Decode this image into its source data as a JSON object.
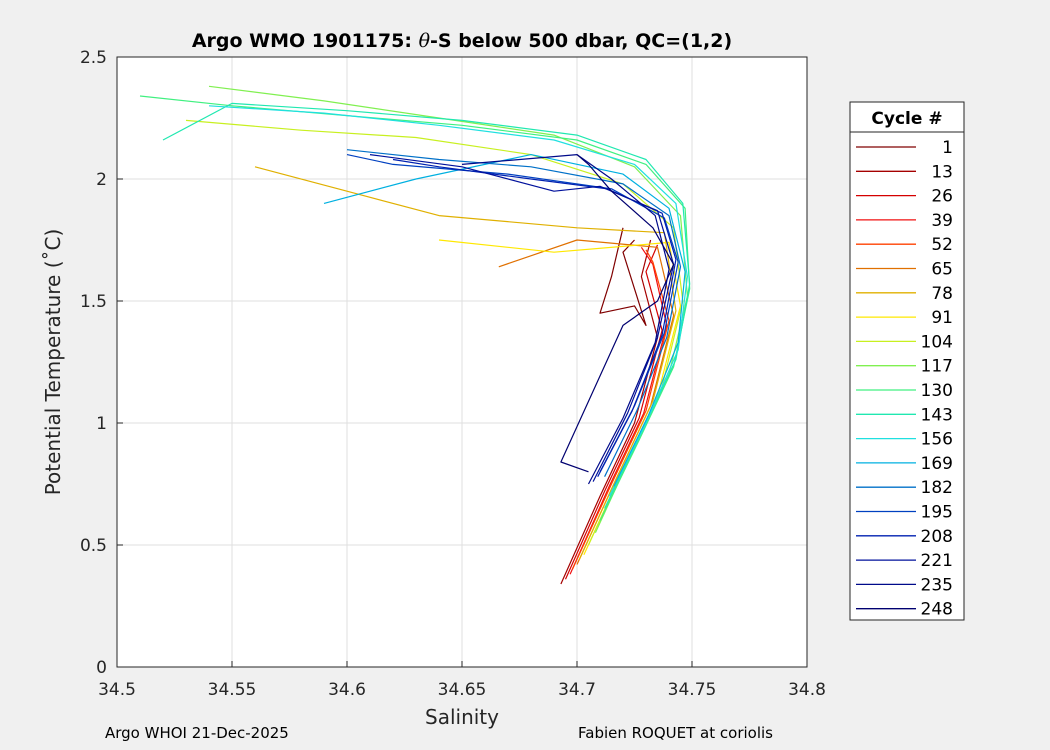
{
  "chart_data": {
    "type": "line",
    "title_prefix": "Argo WMO 1901175: ",
    "title_theta": "θ",
    "title_suffix": "-S below 500 dbar,  QC=(1,2)",
    "xlabel": "Salinity",
    "ylabel": "Potential Temperature (˚C)",
    "xlim": [
      34.5,
      34.8
    ],
    "ylim": [
      0,
      2.5
    ],
    "xticks": [
      34.5,
      34.55,
      34.6,
      34.65,
      34.7,
      34.75,
      34.8
    ],
    "xtick_labels": [
      "34.5",
      "34.55",
      "34.6",
      "34.65",
      "34.7",
      "34.75",
      "34.8"
    ],
    "yticks": [
      0,
      0.5,
      1,
      1.5,
      2,
      2.5
    ],
    "ytick_labels": [
      "0",
      "0.5",
      "1",
      "1.5",
      "2",
      "2.5"
    ],
    "grid": true,
    "legend": {
      "title": "Cycle #",
      "placement": "right-outside",
      "entries": [
        {
          "label": "1",
          "color": "#800000"
        },
        {
          "label": "13",
          "color": "#a50000"
        },
        {
          "label": "26",
          "color": "#d40000"
        },
        {
          "label": "39",
          "color": "#f01010"
        },
        {
          "label": "52",
          "color": "#ff4000"
        },
        {
          "label": "65",
          "color": "#e07000"
        },
        {
          "label": "78",
          "color": "#e0b000"
        },
        {
          "label": "91",
          "color": "#ffe800"
        },
        {
          "label": "104",
          "color": "#c8f020"
        },
        {
          "label": "117",
          "color": "#80f050"
        },
        {
          "label": "130",
          "color": "#40f080"
        },
        {
          "label": "143",
          "color": "#20e8b0"
        },
        {
          "label": "156",
          "color": "#20e0e0"
        },
        {
          "label": "169",
          "color": "#00b0e0"
        },
        {
          "label": "182",
          "color": "#0070c8"
        },
        {
          "label": "195",
          "color": "#0040c0"
        },
        {
          "label": "208",
          "color": "#0020b0"
        },
        {
          "label": "221",
          "color": "#00109c"
        },
        {
          "label": "235",
          "color": "#000a8a"
        },
        {
          "label": "248",
          "color": "#000070"
        }
      ]
    },
    "series": [
      {
        "cycle": "1",
        "color": "#800000",
        "x": [
          34.72,
          34.715,
          34.71,
          34.725,
          34.73,
          34.72,
          34.725
        ],
        "y": [
          1.8,
          1.6,
          1.45,
          1.48,
          1.4,
          1.7,
          1.75
        ]
      },
      {
        "cycle": "13",
        "color": "#a50000",
        "x": [
          34.693,
          34.71,
          34.725,
          34.735,
          34.728,
          34.732
        ],
        "y": [
          0.34,
          0.7,
          1.0,
          1.35,
          1.6,
          1.75
        ]
      },
      {
        "cycle": "26",
        "color": "#d40000",
        "x": [
          34.695,
          34.712,
          34.727,
          34.737,
          34.73,
          34.735
        ],
        "y": [
          0.36,
          0.72,
          1.02,
          1.38,
          1.62,
          1.73
        ]
      },
      {
        "cycle": "39",
        "color": "#f01010",
        "x": [
          34.697,
          34.714,
          34.729,
          34.739,
          34.733,
          34.728
        ],
        "y": [
          0.38,
          0.74,
          1.04,
          1.4,
          1.65,
          1.72
        ]
      },
      {
        "cycle": "52",
        "color": "#ff4000",
        "x": [
          34.698,
          34.715,
          34.73,
          34.74,
          34.733,
          34.73
        ],
        "y": [
          0.4,
          0.75,
          1.05,
          1.42,
          1.66,
          1.71
        ]
      },
      {
        "cycle": "65",
        "color": "#e07000",
        "x": [
          34.7,
          34.717,
          34.732,
          34.742,
          34.735,
          34.7,
          34.666
        ],
        "y": [
          0.42,
          0.77,
          1.07,
          1.44,
          1.72,
          1.75,
          1.64
        ]
      },
      {
        "cycle": "78",
        "color": "#e0b000",
        "x": [
          34.701,
          34.718,
          34.733,
          34.743,
          34.738,
          34.7,
          34.64,
          34.6,
          34.56
        ],
        "y": [
          0.44,
          0.79,
          1.09,
          1.46,
          1.78,
          1.8,
          1.85,
          1.95,
          2.05
        ]
      },
      {
        "cycle": "91",
        "color": "#ffe800",
        "x": [
          34.703,
          34.72,
          34.735,
          34.745,
          34.74,
          34.69,
          34.64
        ],
        "y": [
          0.46,
          0.81,
          1.11,
          1.48,
          1.74,
          1.7,
          1.75
        ]
      },
      {
        "cycle": "104",
        "color": "#c8f020",
        "x": [
          34.705,
          34.722,
          34.737,
          34.746,
          34.742,
          34.72,
          34.68,
          34.63,
          34.58,
          34.53
        ],
        "y": [
          0.5,
          0.85,
          1.15,
          1.5,
          1.8,
          1.98,
          2.1,
          2.17,
          2.2,
          2.24
        ]
      },
      {
        "cycle": "117",
        "color": "#80f050",
        "x": [
          34.708,
          34.725,
          34.74,
          34.748,
          34.745,
          34.725,
          34.69,
          34.64,
          34.59,
          34.54
        ],
        "y": [
          0.55,
          0.9,
          1.2,
          1.52,
          1.85,
          2.05,
          2.18,
          2.25,
          2.32,
          2.38
        ]
      },
      {
        "cycle": "130",
        "color": "#40f080",
        "x": [
          34.71,
          34.727,
          34.742,
          34.749,
          34.747,
          34.73,
          34.7,
          34.65,
          34.6,
          34.55,
          34.51
        ],
        "y": [
          0.6,
          0.93,
          1.23,
          1.55,
          1.88,
          2.06,
          2.16,
          2.22,
          2.26,
          2.3,
          2.34
        ]
      },
      {
        "cycle": "143",
        "color": "#20e8b0",
        "x": [
          34.712,
          34.728,
          34.743,
          34.749,
          34.746,
          34.73,
          34.7,
          34.65,
          34.6,
          34.55,
          34.52
        ],
        "y": [
          0.65,
          0.96,
          1.26,
          1.57,
          1.9,
          2.08,
          2.18,
          2.24,
          2.28,
          2.31,
          2.16
        ]
      },
      {
        "cycle": "156",
        "color": "#20e0e0",
        "x": [
          34.714,
          34.73,
          34.744,
          34.748,
          34.743,
          34.725,
          34.69,
          34.64,
          34.59,
          34.54
        ],
        "y": [
          0.7,
          1.0,
          1.3,
          1.6,
          1.9,
          2.06,
          2.16,
          2.22,
          2.27,
          2.3
        ]
      },
      {
        "cycle": "169",
        "color": "#00b0e0",
        "x": [
          34.716,
          34.731,
          34.744,
          34.747,
          34.74,
          34.72,
          34.68,
          34.63,
          34.59
        ],
        "y": [
          0.74,
          1.03,
          1.33,
          1.62,
          1.88,
          2.02,
          2.1,
          2.0,
          1.9
        ]
      },
      {
        "cycle": "182",
        "color": "#0070c8",
        "x": [
          34.712,
          34.726,
          34.739,
          34.745,
          34.74,
          34.72,
          34.68,
          34.64,
          34.6
        ],
        "y": [
          0.78,
          1.05,
          1.35,
          1.64,
          1.85,
          1.98,
          2.05,
          2.08,
          2.12
        ]
      },
      {
        "cycle": "195",
        "color": "#0040c0",
        "x": [
          34.71,
          34.725,
          34.738,
          34.744,
          34.738,
          34.715,
          34.67,
          34.62,
          34.6
        ],
        "y": [
          0.8,
          1.07,
          1.37,
          1.66,
          1.84,
          1.96,
          2.02,
          2.06,
          2.1
        ]
      },
      {
        "cycle": "208",
        "color": "#0020b0",
        "x": [
          34.709,
          34.724,
          34.737,
          34.743,
          34.737,
          34.713,
          34.68,
          34.64,
          34.62
        ],
        "y": [
          0.78,
          1.05,
          1.36,
          1.67,
          1.86,
          1.96,
          2.0,
          2.05,
          2.08
        ]
      },
      {
        "cycle": "221",
        "color": "#00109c",
        "x": [
          34.707,
          34.722,
          34.735,
          34.742,
          34.735,
          34.71,
          34.69,
          34.65,
          34.61
        ],
        "y": [
          0.76,
          1.04,
          1.35,
          1.65,
          1.87,
          1.97,
          1.95,
          2.05,
          2.1
        ]
      },
      {
        "cycle": "235",
        "color": "#000a8a",
        "x": [
          34.705,
          34.72,
          34.734,
          34.74,
          34.734,
          34.715,
          34.7,
          34.65
        ],
        "y": [
          0.75,
          1.02,
          1.33,
          1.63,
          1.85,
          2.0,
          2.1,
          2.06
        ]
      },
      {
        "cycle": "248",
        "color": "#000070",
        "x": [
          34.705,
          34.693,
          34.72,
          34.735,
          34.742,
          34.733,
          34.715,
          34.705,
          34.7
        ],
        "y": [
          0.8,
          0.84,
          1.4,
          1.5,
          1.65,
          1.8,
          1.95,
          2.06,
          2.1
        ]
      }
    ]
  },
  "footer": {
    "left": "Argo WHOI 21-Dec-2025",
    "right": "Fabien ROQUET at coriolis"
  }
}
